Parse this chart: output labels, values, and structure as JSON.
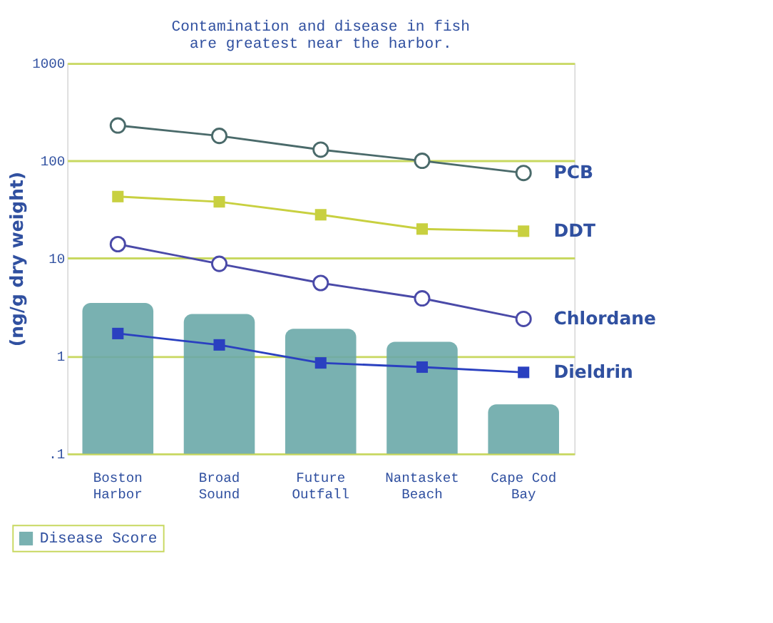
{
  "chart_data": {
    "type": "bar",
    "title": [
      "Contamination and disease in fish",
      "are greatest near the harbor."
    ],
    "ylabel": "(ng/g dry weight)",
    "categories": [
      "Boston Harbor",
      "Broad Sound",
      "Future Outfall",
      "Nantasket Beach",
      "Cape Cod Bay"
    ],
    "series": [
      {
        "name": "Disease Score",
        "color": "#6aa8a8",
        "values": [
          3.5,
          2.7,
          1.9,
          1.4,
          0.32
        ]
      },
      {
        "name": "PCB",
        "type": "line",
        "marker": "circle",
        "color": "#4a6a6a",
        "values": [
          230,
          180,
          130,
          100,
          75
        ]
      },
      {
        "name": "DDT",
        "type": "line",
        "marker": "square",
        "color": "#c8d040",
        "values": [
          43,
          38,
          28,
          20,
          19
        ]
      },
      {
        "name": "Chlordane",
        "type": "line",
        "marker": "circle",
        "color": "#4a4aa8",
        "values": [
          14,
          8.8,
          5.6,
          3.9,
          2.4
        ]
      },
      {
        "name": "Dieldrin",
        "type": "line",
        "marker": "square",
        "color": "#2a40c0",
        "values": [
          1.7,
          1.3,
          0.85,
          0.77,
          0.68
        ]
      }
    ],
    "log": true,
    "ylim": [
      0.1,
      1000
    ],
    "yticks": [
      {
        "value": 0.1,
        "label": ".1"
      },
      1,
      10,
      100,
      1000
    ],
    "grid": "y",
    "legend": "bottom left"
  }
}
